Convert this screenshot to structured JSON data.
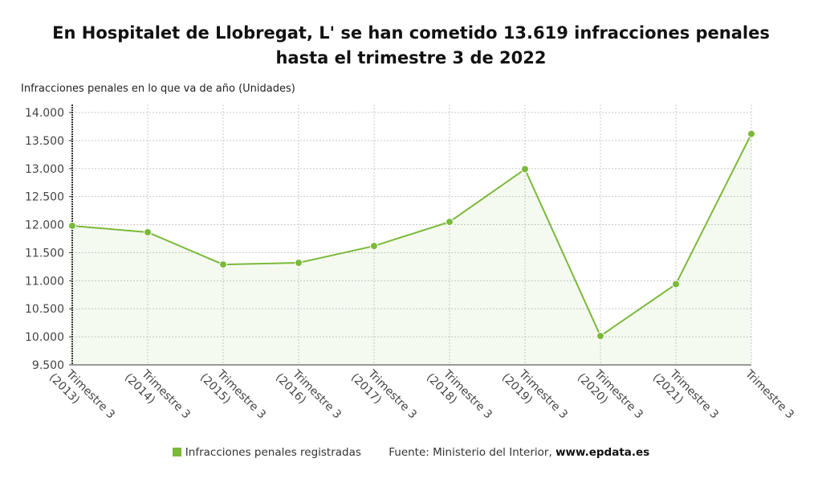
{
  "title": "En Hospitalet de Llobregat, L' se han cometido 13.619 infracciones penales hasta el trimestre 3 de 2022",
  "source_prefix": "Fuente: Ministerio del Interior, ",
  "source_site": "www.epdata.es",
  "chart_data": {
    "type": "area",
    "title": "En Hospitalet de Llobregat, L' se han cometido 13.619 infracciones penales hasta el trimestre 3 de 2022",
    "ylabel": "Infracciones penales en lo que va de año (Unidades)",
    "xlabel": "",
    "categories": [
      [
        "Trimestre 3",
        "(2013)"
      ],
      [
        "Trimestre 3",
        "(2014)"
      ],
      [
        "Trimestre 3",
        "(2015)"
      ],
      [
        "Trimestre 3",
        "(2016)"
      ],
      [
        "Trimestre 3",
        "(2017)"
      ],
      [
        "Trimestre 3",
        "(2018)"
      ],
      [
        "Trimestre 3",
        "(2019)"
      ],
      [
        "Trimestre 3",
        "(2020)"
      ],
      [
        "Trimestre 3",
        "(2021)"
      ],
      [
        "Trimestre 3",
        ""
      ]
    ],
    "series": [
      {
        "name": "Infracciones penales registradas",
        "color": "#7ab93a",
        "values": [
          11980,
          11865,
          11290,
          11320,
          11620,
          12050,
          12990,
          10015,
          10940,
          13619
        ]
      }
    ],
    "ylim": [
      9500,
      14000
    ],
    "yticks": [
      9500,
      10000,
      10500,
      11000,
      11500,
      12000,
      12500,
      13000,
      13500,
      14000
    ],
    "ytick_labels": [
      "9.500",
      "10.000",
      "10.500",
      "11.000",
      "11.500",
      "12.000",
      "12.500",
      "13.000",
      "13.500",
      "14.000"
    ],
    "grid": true,
    "legend_position": "bottom"
  }
}
